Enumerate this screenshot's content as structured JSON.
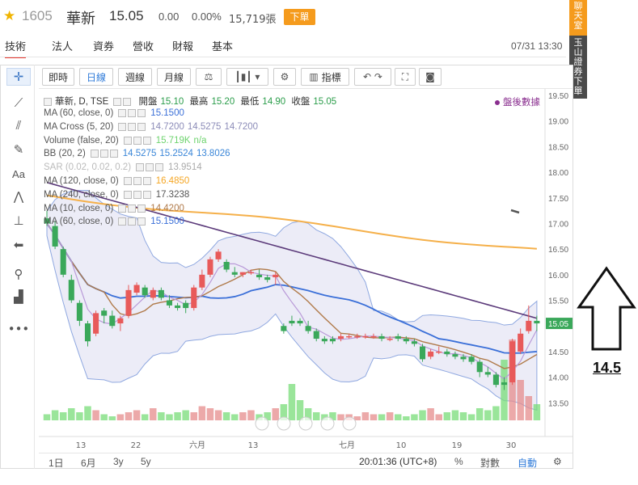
{
  "header": {
    "code": "1605",
    "name": "華新",
    "price": "15.05",
    "change": "0.00",
    "change_pct": "0.00%",
    "volume": "15,719張",
    "order_button": "下單"
  },
  "tabs": [
    {
      "label": "技術",
      "active": true
    },
    {
      "label": "法人"
    },
    {
      "label": "資券"
    },
    {
      "label": "營收"
    },
    {
      "label": "財報"
    },
    {
      "label": "基本"
    }
  ],
  "datetime": "07/31 13:30",
  "banner": {
    "chat": [
      "聊",
      "天",
      "室"
    ],
    "broker": [
      "玉",
      "山",
      "證",
      "券",
      "下",
      "單"
    ]
  },
  "toolbar": {
    "intraday": "即時",
    "daily": "日線",
    "weekly": "週線",
    "monthly": "月線",
    "indicators": "指標"
  },
  "legend": {
    "symbol": "華新, D, TSE",
    "open_label": "開盤",
    "open": "15.10",
    "high_label": "最高",
    "high": "15.20",
    "low_label": "最低",
    "low": "14.90",
    "close_label": "收盤",
    "close": "15.05",
    "after_hours": "盤後數據",
    "indicators": [
      {
        "name": "MA (60, close, 0)",
        "values": [
          "15.1500"
        ],
        "color": "#3a6fd8"
      },
      {
        "name": "MA Cross (5, 20)",
        "values": [
          "14.7200",
          "14.5275",
          "14.7200"
        ],
        "color": "#8c8cb8"
      },
      {
        "name": "Volume (false, 20)",
        "values": [
          "15.719K",
          "n/a"
        ],
        "color": "#6ed36e"
      },
      {
        "name": "BB (20, 2)",
        "values": [
          "14.5275",
          "15.2524",
          "13.8026"
        ],
        "color": "#3a86d8"
      },
      {
        "name": "SAR (0.02, 0.02, 0.2)",
        "values": [
          "13.9514"
        ],
        "color": "#aaaaaa"
      },
      {
        "name": "MA (120, close, 0)",
        "values": [
          "16.4850"
        ],
        "color": "#f5a623"
      },
      {
        "name": "MA (240, close, 0)",
        "values": [
          "17.3238"
        ],
        "color": "#555555"
      },
      {
        "name": "MA (10, close, 0)",
        "values": [
          "14.4200"
        ],
        "color": "#b07a4a"
      },
      {
        "name": "MA (60, close, 0)",
        "values": [
          "15.1500"
        ],
        "color": "#3a6fd8"
      }
    ]
  },
  "chart_data": {
    "type": "candlestick",
    "y_ticks": [
      "19.50",
      "19.00",
      "18.50",
      "18.00",
      "17.50",
      "17.00",
      "16.50",
      "16.00",
      "15.50",
      "15.00",
      "14.50",
      "14.00",
      "13.50"
    ],
    "ylim": [
      13.0,
      19.5
    ],
    "current_price_label": "15.05",
    "x_ticks": [
      "13",
      "22",
      "六月",
      "13",
      "七月",
      "10",
      "19",
      "30"
    ],
    "candles": [
      {
        "o": 17.1,
        "h": 17.25,
        "l": 16.95,
        "c": 17.0
      },
      {
        "o": 16.95,
        "h": 17.05,
        "l": 16.5,
        "c": 16.55
      },
      {
        "o": 16.5,
        "h": 16.55,
        "l": 15.95,
        "c": 16.0
      },
      {
        "o": 15.9,
        "h": 16.0,
        "l": 15.45,
        "c": 15.5
      },
      {
        "o": 15.45,
        "h": 15.5,
        "l": 15.0,
        "c": 15.1
      },
      {
        "o": 15.05,
        "h": 15.1,
        "l": 14.6,
        "c": 14.7
      },
      {
        "o": 14.85,
        "h": 15.3,
        "l": 14.8,
        "c": 15.25
      },
      {
        "o": 15.3,
        "h": 15.35,
        "l": 15.05,
        "c": 15.2
      },
      {
        "o": 15.2,
        "h": 15.3,
        "l": 14.95,
        "c": 15.0
      },
      {
        "o": 15.05,
        "h": 15.2,
        "l": 14.9,
        "c": 15.15
      },
      {
        "o": 15.2,
        "h": 15.8,
        "l": 15.15,
        "c": 15.7
      },
      {
        "o": 15.65,
        "h": 15.85,
        "l": 15.6,
        "c": 15.8
      },
      {
        "o": 15.75,
        "h": 15.8,
        "l": 15.55,
        "c": 15.6
      },
      {
        "o": 15.55,
        "h": 15.75,
        "l": 15.5,
        "c": 15.7
      },
      {
        "o": 15.7,
        "h": 15.75,
        "l": 15.5,
        "c": 15.55
      },
      {
        "o": 15.5,
        "h": 15.6,
        "l": 15.35,
        "c": 15.4
      },
      {
        "o": 15.4,
        "h": 15.45,
        "l": 15.3,
        "c": 15.35
      },
      {
        "o": 15.45,
        "h": 15.5,
        "l": 15.25,
        "c": 15.35
      },
      {
        "o": 15.35,
        "h": 15.8,
        "l": 15.3,
        "c": 15.75
      },
      {
        "o": 15.75,
        "h": 16.1,
        "l": 15.7,
        "c": 16.0
      },
      {
        "o": 16.0,
        "h": 16.35,
        "l": 15.95,
        "c": 16.3
      },
      {
        "o": 16.3,
        "h": 16.5,
        "l": 16.25,
        "c": 16.45
      },
      {
        "o": 16.25,
        "h": 16.3,
        "l": 16.05,
        "c": 16.1
      },
      {
        "o": 16.05,
        "h": 16.15,
        "l": 15.95,
        "c": 16.0
      },
      {
        "o": 16.0,
        "h": 16.05,
        "l": 15.95,
        "c": 16.05
      },
      {
        "o": 16.05,
        "h": 16.1,
        "l": 16.0,
        "c": 16.05
      },
      {
        "o": 16.0,
        "h": 16.1,
        "l": 15.9,
        "c": 15.95
      },
      {
        "o": 15.95,
        "h": 16.0,
        "l": 15.85,
        "c": 15.9
      },
      {
        "o": 15.95,
        "h": 16.05,
        "l": 15.8,
        "c": 16.0
      },
      {
        "o": 15.0,
        "h": 15.05,
        "l": 14.85,
        "c": 14.9
      },
      {
        "o": 15.1,
        "h": 15.2,
        "l": 15.0,
        "c": 15.05
      },
      {
        "o": 15.1,
        "h": 15.15,
        "l": 15.0,
        "c": 15.05
      },
      {
        "o": 15.0,
        "h": 15.1,
        "l": 14.85,
        "c": 14.9
      },
      {
        "o": 14.9,
        "h": 14.95,
        "l": 14.7,
        "c": 14.75
      },
      {
        "o": 14.75,
        "h": 14.8,
        "l": 14.65,
        "c": 14.7
      },
      {
        "o": 14.75,
        "h": 14.8,
        "l": 14.65,
        "c": 14.7
      },
      {
        "o": 14.75,
        "h": 14.85,
        "l": 14.7,
        "c": 14.8
      },
      {
        "o": 14.8,
        "h": 14.85,
        "l": 14.75,
        "c": 14.8
      },
      {
        "o": 14.8,
        "h": 14.85,
        "l": 14.75,
        "c": 14.8
      },
      {
        "o": 14.8,
        "h": 14.85,
        "l": 14.75,
        "c": 14.8
      },
      {
        "o": 14.8,
        "h": 14.85,
        "l": 14.75,
        "c": 14.8
      },
      {
        "o": 14.8,
        "h": 14.85,
        "l": 14.7,
        "c": 14.75
      },
      {
        "o": 14.75,
        "h": 14.8,
        "l": 14.7,
        "c": 14.75
      },
      {
        "o": 14.8,
        "h": 14.85,
        "l": 14.7,
        "c": 14.75
      },
      {
        "o": 14.75,
        "h": 14.8,
        "l": 14.65,
        "c": 14.7
      },
      {
        "o": 14.7,
        "h": 14.75,
        "l": 14.6,
        "c": 14.65
      },
      {
        "o": 14.6,
        "h": 14.65,
        "l": 14.3,
        "c": 14.35
      },
      {
        "o": 14.4,
        "h": 14.55,
        "l": 14.35,
        "c": 14.5
      },
      {
        "o": 14.5,
        "h": 14.6,
        "l": 14.45,
        "c": 14.5
      },
      {
        "o": 14.5,
        "h": 14.55,
        "l": 14.4,
        "c": 14.45
      },
      {
        "o": 14.45,
        "h": 14.5,
        "l": 14.35,
        "c": 14.4
      },
      {
        "o": 14.4,
        "h": 14.45,
        "l": 14.3,
        "c": 14.35
      },
      {
        "o": 14.4,
        "h": 14.45,
        "l": 14.25,
        "c": 14.3
      },
      {
        "o": 14.3,
        "h": 14.35,
        "l": 14.0,
        "c": 14.1
      },
      {
        "o": 14.1,
        "h": 14.2,
        "l": 14.0,
        "c": 14.05
      },
      {
        "o": 14.05,
        "h": 14.1,
        "l": 13.8,
        "c": 13.85
      },
      {
        "o": 13.9,
        "h": 14.0,
        "l": 13.75,
        "c": 13.85
      },
      {
        "o": 13.9,
        "h": 14.75,
        "l": 13.85,
        "c": 14.7
      },
      {
        "o": 14.5,
        "h": 14.95,
        "l": 14.45,
        "c": 14.85
      },
      {
        "o": 14.9,
        "h": 15.4,
        "l": 14.85,
        "c": 15.1
      },
      {
        "o": 15.1,
        "h": 15.2,
        "l": 14.9,
        "c": 15.05
      }
    ],
    "volumes": [
      3,
      5,
      4,
      6,
      4,
      7,
      5,
      3,
      2,
      3,
      4,
      5,
      3,
      6,
      4,
      3,
      4,
      5,
      4,
      7,
      6,
      5,
      4,
      3,
      4,
      5,
      3,
      4,
      6,
      8,
      18,
      10,
      6,
      4,
      3,
      4,
      3,
      3,
      2,
      4,
      3,
      3,
      4,
      3,
      2,
      3,
      5,
      6,
      3,
      4,
      5,
      4,
      3,
      6,
      5,
      7,
      30,
      40,
      20,
      12,
      8
    ],
    "annotation": "14.5"
  },
  "bottom": {
    "range_1d": "1日",
    "range_6m": "6月",
    "range_3y": "3y",
    "range_5y": "5y",
    "clock": "20:01:36 (UTC+8)",
    "percent": "%",
    "log": "對數",
    "auto": "自動"
  }
}
